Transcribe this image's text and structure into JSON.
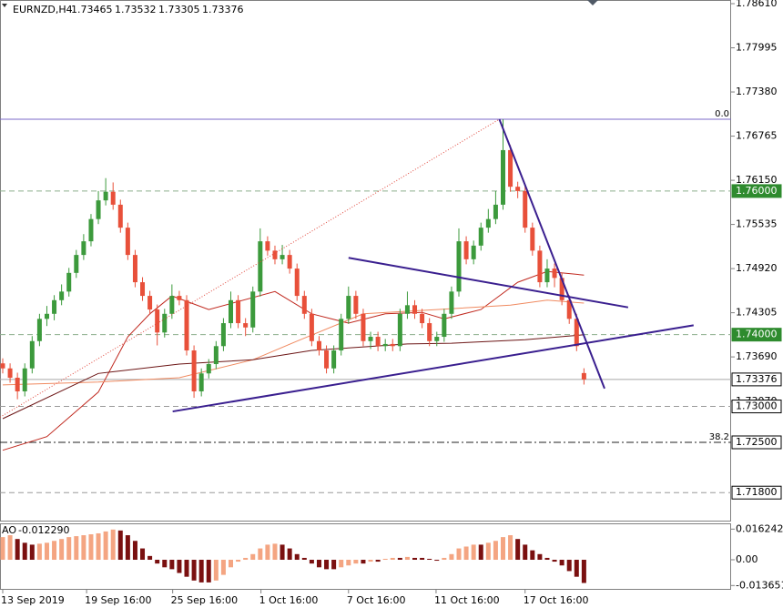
{
  "chart_data": {
    "type": "candlestick",
    "header": {
      "symbol": "EURNZD,H4",
      "ohlc": [
        1.73465,
        1.73532,
        1.73305,
        1.73376
      ]
    },
    "up_color": "#3c9a3c",
    "down_color": "#e8503a",
    "xlim": [
      -0.37,
      99.0
    ],
    "ylim": [
      1.71397,
      1.78661
    ],
    "yticks": [
      {
        "value": 1.7861,
        "label": "1.78610"
      },
      {
        "value": 1.77995,
        "label": "1.77995"
      },
      {
        "value": 1.7738,
        "label": "1.77380"
      },
      {
        "value": 1.76765,
        "label": "1.76765"
      },
      {
        "value": 1.7615,
        "label": "1.76150"
      },
      {
        "value": 1.75535,
        "label": "1.75535"
      },
      {
        "value": 1.7492,
        "label": "1.74920"
      },
      {
        "value": 1.74305,
        "label": "1.74305"
      },
      {
        "value": 1.7369,
        "label": "1.73690"
      },
      {
        "value": 1.7307,
        "label": "1.73070"
      }
    ],
    "xticks": [
      {
        "value": 0,
        "label": "13 Sep 2019"
      },
      {
        "value": 11.4,
        "label": "19 Sep 16:00"
      },
      {
        "value": 23.1,
        "label": "25 Sep 16:00"
      },
      {
        "value": 35.1,
        "label": "1 Oct 16:00"
      },
      {
        "value": 47,
        "label": "7 Oct 16:00"
      },
      {
        "value": 58.9,
        "label": "11 Oct 16:00"
      },
      {
        "value": 71,
        "label": "17 Oct 16:00"
      }
    ],
    "candles": [
      [
        1.736,
        1.7367,
        1.7346,
        1.7353
      ],
      [
        1.7353,
        1.736,
        1.7333,
        1.734
      ],
      [
        1.734,
        1.7347,
        1.731,
        1.7321
      ],
      [
        1.7321,
        1.736,
        1.7314,
        1.7353
      ],
      [
        1.7353,
        1.7398,
        1.7346,
        1.7391
      ],
      [
        1.7391,
        1.7429,
        1.7384,
        1.7422
      ],
      [
        1.7422,
        1.744,
        1.7412,
        1.7429
      ],
      [
        1.7429,
        1.7455,
        1.742,
        1.7448
      ],
      [
        1.7448,
        1.747,
        1.7441,
        1.746
      ],
      [
        1.746,
        1.7493,
        1.7453,
        1.7486
      ],
      [
        1.7486,
        1.7518,
        1.7479,
        1.7511
      ],
      [
        1.7511,
        1.754,
        1.7504,
        1.753
      ],
      [
        1.753,
        1.7568,
        1.7523,
        1.7561
      ],
      [
        1.7561,
        1.76,
        1.7554,
        1.7587
      ],
      [
        1.7587,
        1.7618,
        1.758,
        1.7599
      ],
      [
        1.7599,
        1.7612,
        1.7574,
        1.7581
      ],
      [
        1.7581,
        1.7588,
        1.7542,
        1.7549
      ],
      [
        1.7549,
        1.7556,
        1.7504,
        1.7511
      ],
      [
        1.7511,
        1.7518,
        1.7466,
        1.7473
      ],
      [
        1.7473,
        1.748,
        1.7447,
        1.7454
      ],
      [
        1.7454,
        1.7461,
        1.7428,
        1.7435
      ],
      [
        1.7435,
        1.7442,
        1.7385,
        1.7403
      ],
      [
        1.7403,
        1.7436,
        1.7396,
        1.7429
      ],
      [
        1.7429,
        1.747,
        1.7422,
        1.7454
      ],
      [
        1.7454,
        1.7461,
        1.7441,
        1.7448
      ],
      [
        1.7448,
        1.7455,
        1.7371,
        1.7378
      ],
      [
        1.7378,
        1.7385,
        1.7312,
        1.7321
      ],
      [
        1.7321,
        1.7353,
        1.7314,
        1.7346
      ],
      [
        1.7346,
        1.7366,
        1.7339,
        1.7359
      ],
      [
        1.7359,
        1.7391,
        1.7352,
        1.7384
      ],
      [
        1.7384,
        1.7423,
        1.7377,
        1.7416
      ],
      [
        1.7416,
        1.746,
        1.7409,
        1.7448
      ],
      [
        1.7448,
        1.7455,
        1.7409,
        1.7416
      ],
      [
        1.7416,
        1.7423,
        1.7398,
        1.741
      ],
      [
        1.741,
        1.7467,
        1.7403,
        1.746
      ],
      [
        1.746,
        1.7548,
        1.7453,
        1.753
      ],
      [
        1.753,
        1.7537,
        1.751,
        1.7517
      ],
      [
        1.7517,
        1.7524,
        1.7498,
        1.7505
      ],
      [
        1.7505,
        1.7525,
        1.7498,
        1.7511
      ],
      [
        1.7511,
        1.7518,
        1.7485,
        1.7492
      ],
      [
        1.7492,
        1.7499,
        1.7447,
        1.7454
      ],
      [
        1.7454,
        1.7461,
        1.7422,
        1.7429
      ],
      [
        1.7429,
        1.7436,
        1.7384,
        1.7391
      ],
      [
        1.7391,
        1.7398,
        1.7371,
        1.7378
      ],
      [
        1.7378,
        1.7385,
        1.7346,
        1.7353
      ],
      [
        1.7353,
        1.7385,
        1.7346,
        1.7378
      ],
      [
        1.7378,
        1.7429,
        1.7371,
        1.7422
      ],
      [
        1.7422,
        1.7467,
        1.7415,
        1.7454
      ],
      [
        1.7454,
        1.7461,
        1.7422,
        1.7429
      ],
      [
        1.7429,
        1.7436,
        1.7384,
        1.7391
      ],
      [
        1.7391,
        1.7404,
        1.738,
        1.7397
      ],
      [
        1.7397,
        1.7404,
        1.7377,
        1.7384
      ],
      [
        1.7384,
        1.7394,
        1.7377,
        1.7387
      ],
      [
        1.7387,
        1.7394,
        1.7377,
        1.7384
      ],
      [
        1.7384,
        1.7436,
        1.7377,
        1.7429
      ],
      [
        1.7429,
        1.746,
        1.7422,
        1.7441
      ],
      [
        1.7441,
        1.7448,
        1.7422,
        1.7429
      ],
      [
        1.7429,
        1.7436,
        1.7409,
        1.7416
      ],
      [
        1.7416,
        1.7423,
        1.7384,
        1.7391
      ],
      [
        1.7391,
        1.7404,
        1.7384,
        1.7397
      ],
      [
        1.7397,
        1.7436,
        1.739,
        1.7429
      ],
      [
        1.7429,
        1.7467,
        1.7422,
        1.746
      ],
      [
        1.746,
        1.7548,
        1.7453,
        1.753
      ],
      [
        1.753,
        1.7537,
        1.7498,
        1.7505
      ],
      [
        1.7505,
        1.7531,
        1.7498,
        1.7524
      ],
      [
        1.7524,
        1.7556,
        1.7517,
        1.7549
      ],
      [
        1.7549,
        1.7575,
        1.7542,
        1.7561
      ],
      [
        1.7561,
        1.76,
        1.7554,
        1.7581
      ],
      [
        1.7581,
        1.77,
        1.7574,
        1.7657
      ],
      [
        1.7657,
        1.7664,
        1.7599,
        1.7606
      ],
      [
        1.7606,
        1.7613,
        1.759,
        1.76
      ],
      [
        1.76,
        1.7607,
        1.7542,
        1.7549
      ],
      [
        1.7549,
        1.7556,
        1.751,
        1.7517
      ],
      [
        1.7517,
        1.7524,
        1.7466,
        1.7473
      ],
      [
        1.7473,
        1.7505,
        1.7466,
        1.7492
      ],
      [
        1.7492,
        1.7499,
        1.7466,
        1.7479
      ],
      [
        1.7479,
        1.7486,
        1.7441,
        1.7448
      ],
      [
        1.7448,
        1.7455,
        1.7415,
        1.7422
      ],
      [
        1.7422,
        1.7429,
        1.7377,
        1.7384
      ],
      [
        1.73465,
        1.73532,
        1.73305,
        1.73376
      ]
    ],
    "moving_averages": [
      {
        "color": "#c0281e",
        "x": [
          0,
          6,
          13,
          17,
          20,
          23,
          28,
          37,
          42,
          47,
          52,
          57,
          60,
          65,
          70,
          74,
          79
        ],
        "values": [
          1.7239,
          1.7258,
          1.732,
          1.7397,
          1.7429,
          1.7454,
          1.7435,
          1.746,
          1.7429,
          1.7416,
          1.7429,
          1.7431,
          1.7422,
          1.7435,
          1.7473,
          1.7488,
          1.7483
        ]
      },
      {
        "color": "#f08a60",
        "x": [
          0,
          13,
          24,
          34,
          40,
          49,
          59,
          69,
          74,
          79
        ],
        "values": [
          1.733,
          1.7334,
          1.734,
          1.7365,
          1.7391,
          1.7429,
          1.7435,
          1.7441,
          1.7448,
          1.7444
        ]
      },
      {
        "color": "#6b1414",
        "x": [
          0,
          13,
          24,
          34,
          42,
          55,
          61,
          71,
          78,
          79
        ],
        "values": [
          1.7283,
          1.7346,
          1.7359,
          1.7365,
          1.7378,
          1.7387,
          1.7388,
          1.7393,
          1.7399,
          1.74
        ]
      }
    ],
    "trendlines": [
      {
        "color": "#3a1f8f",
        "style": "solid",
        "x": [
          23.1,
          93.9
        ],
        "y": [
          1.7293,
          1.7413
        ]
      },
      {
        "color": "#3a1f8f",
        "style": "solid",
        "x": [
          47,
          85
        ],
        "y": [
          1.7507,
          1.7438
        ]
      },
      {
        "color": "#3a1f8f",
        "style": "solid",
        "x": [
          67.5,
          81.8
        ],
        "y": [
          1.77,
          1.7325
        ]
      },
      {
        "color": "#e0453a",
        "style": "dotted",
        "x": [
          -0.37,
          67.5
        ],
        "y": [
          1.7285,
          1.77
        ]
      }
    ],
    "fibo": [
      {
        "price": 1.77,
        "level": {
          "value": 0,
          "label": "0.0"
        },
        "color": "#7b68c8",
        "style": "solid"
      },
      {
        "price": 1.725,
        "level": 38.2,
        "color": "#222222",
        "style": "dashdot"
      }
    ],
    "levels": [
      {
        "price": {
          "value": 1.76,
          "label": "1.76000"
        },
        "line_color": "#8caf8c",
        "style": "dashed",
        "box_fill": "#2e8b2e",
        "text_color": "#ffffff"
      },
      {
        "price": {
          "value": 1.74,
          "label": "1.74000"
        },
        "line_color": "#8caf8c",
        "style": "dashed",
        "box_fill": "#2e8b2e",
        "text_color": "#ffffff"
      },
      {
        "price": {
          "value": 1.73376,
          "label": "1.73376"
        },
        "line_color": "#a8a8a8",
        "style": "solid",
        "box_fill": "#ffffff",
        "text_color": "#000000"
      },
      {
        "price": {
          "value": 1.73,
          "label": "1.73000"
        },
        "line_color": "#999999",
        "style": "dashed",
        "box_fill": "#ffffff",
        "text_color": "#000000"
      },
      {
        "price": {
          "value": 1.725,
          "label": "1.72500"
        },
        "line_color": "#555555",
        "style": "none",
        "box_fill": "#ffffff",
        "text_color": "#000000"
      },
      {
        "price": {
          "value": 1.718,
          "label": "1.71800"
        },
        "line_color": "#999999",
        "style": "dashed",
        "box_fill": "#ffffff",
        "text_color": "#000000"
      }
    ],
    "ao": {
      "title": "AO",
      "current": {
        "value": -0.01229,
        "label": "-0.012290"
      },
      "rise_color": "#f4a582",
      "fall_color": "#7a1010",
      "ylim": [
        -0.01591,
        0.01929
      ],
      "yticks": [
        {
          "value": 0.016242,
          "label": "0.016242"
        },
        {
          "value": 0,
          "label": "0.00"
        },
        {
          "value": -0.013651,
          "label": "-0.013651"
        }
      ],
      "values": [
        0.012,
        0.013,
        0.011,
        0.009,
        0.008,
        0.0085,
        0.009,
        0.01,
        0.011,
        0.012,
        0.0125,
        0.013,
        0.0135,
        0.014,
        0.015,
        0.016,
        0.0155,
        0.013,
        0.01,
        0.006,
        0.002,
        -0.002,
        -0.004,
        -0.005,
        -0.007,
        -0.009,
        -0.011,
        -0.012,
        -0.012,
        -0.011,
        -0.008,
        -0.004,
        -0.001,
        0.001,
        0.003,
        0.006,
        0.008,
        0.0085,
        0.008,
        0.006,
        0.003,
        0.001,
        -0.002,
        -0.004,
        -0.005,
        -0.005,
        -0.004,
        -0.003,
        -0.002,
        -0.002,
        -0.001,
        -0.001,
        0.0005,
        0.001,
        0.001,
        0.0015,
        0.001,
        0.001,
        0.0005,
        -0.0005,
        0.001,
        0.003,
        0.006,
        0.007,
        0.008,
        0.008,
        0.009,
        0.01,
        0.012,
        0.013,
        0.011,
        0.008,
        0.005,
        0.003,
        0.001,
        -0.001,
        -0.003,
        -0.006,
        -0.009,
        -0.01229
      ]
    }
  }
}
